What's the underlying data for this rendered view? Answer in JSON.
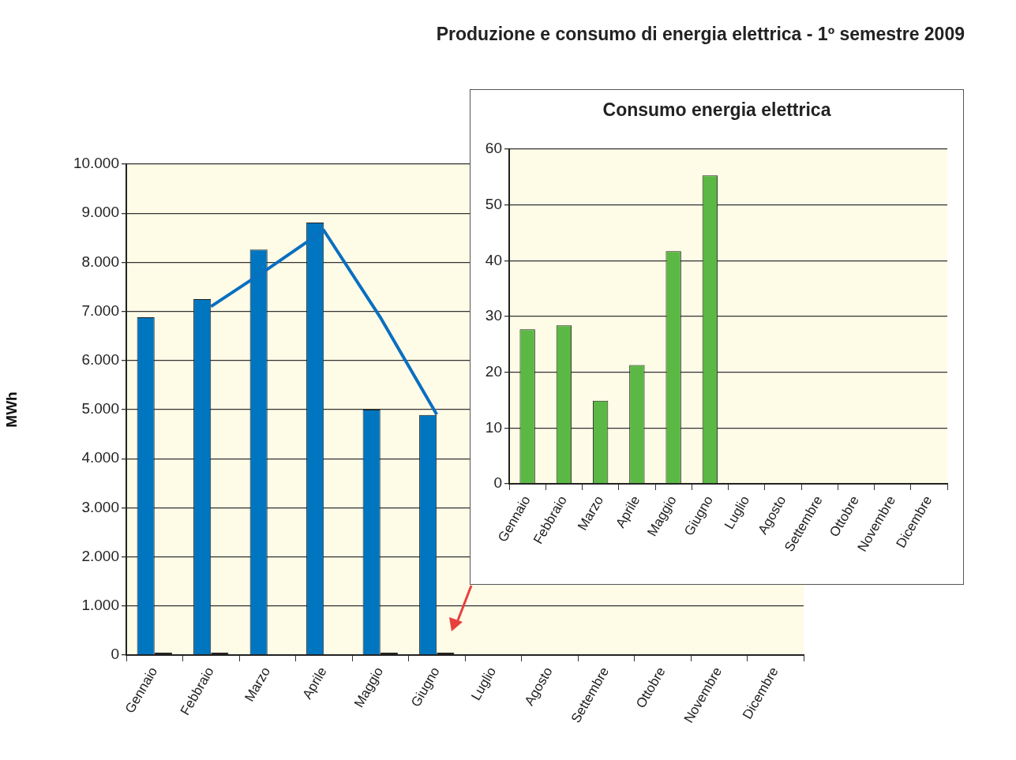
{
  "chart_data": [
    {
      "type": "bar",
      "title": "Produzione e consumo di energia elettrica - 1º semestre 2009",
      "ylabel": "MWh",
      "categories": [
        "Gennaio",
        "Febbraio",
        "Marzo",
        "Aprile",
        "Maggio",
        "Giugno",
        "Luglio",
        "Agosto",
        "Settembre",
        "Ottobre",
        "Novembre",
        "Dicembre"
      ],
      "series": [
        {
          "type": "bar",
          "color": "#0076c0",
          "values": [
            6880,
            7250,
            8260,
            8810,
            5000,
            4890,
            null,
            null,
            null,
            null,
            null,
            null
          ]
        },
        {
          "type": "bar",
          "color": "#2b1d1d",
          "values": [
            50,
            50,
            null,
            null,
            50,
            50,
            null,
            null,
            null,
            null,
            null,
            null
          ]
        },
        {
          "type": "line",
          "color": "#0a6fc0",
          "values": [
            null,
            7100,
            7860,
            8650,
            6880,
            4900,
            null,
            null,
            null,
            null,
            null,
            null
          ]
        }
      ],
      "ylim": [
        0,
        10000
      ],
      "yticks": [
        {
          "value": 0,
          "label": "0"
        },
        {
          "value": 1000,
          "label": "1.000"
        },
        {
          "value": 2000,
          "label": "2.000"
        },
        {
          "value": 3000,
          "label": "3.000"
        },
        {
          "value": 4000,
          "label": "4.000"
        },
        {
          "value": 5000,
          "label": "5.000"
        },
        {
          "value": 6000,
          "label": "6.000"
        },
        {
          "value": 7000,
          "label": "7.000"
        },
        {
          "value": 8000,
          "label": "8.000"
        },
        {
          "value": 9000,
          "label": "9.000"
        },
        {
          "value": 10000,
          "label": "10.000"
        }
      ],
      "grid": "y",
      "marker": "none"
    },
    {
      "type": "bar",
      "title": "Consumo energia elettrica",
      "categories": [
        "Gennaio",
        "Febbraio",
        "Marzo",
        "Aprile",
        "Maggio",
        "Giugno",
        "Luglio",
        "Agosto",
        "Settembre",
        "Ottobre",
        "Novembre",
        "Dicembre"
      ],
      "series": [
        {
          "color": "#5cb845",
          "values": [
            27.7,
            28.4,
            14.9,
            21.3,
            41.7,
            55.3,
            null,
            null,
            null,
            null,
            null,
            null
          ]
        }
      ],
      "ylim": [
        0,
        60
      ],
      "yticks": [
        0,
        10,
        20,
        30,
        40,
        50,
        60
      ],
      "grid": "y"
    }
  ]
}
